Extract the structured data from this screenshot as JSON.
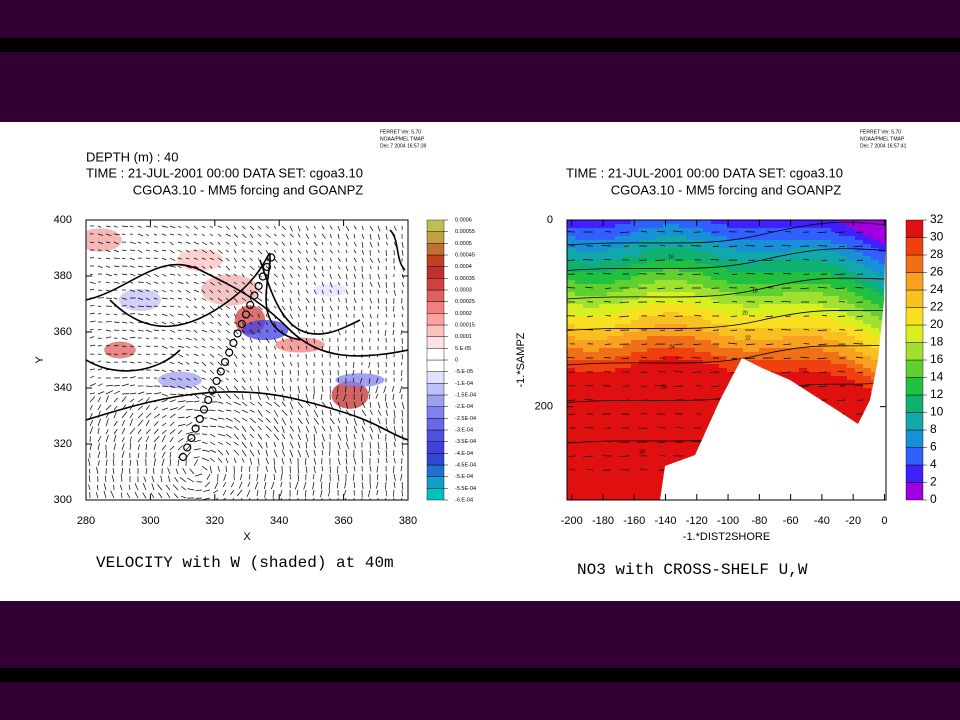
{
  "chart_data": [
    {
      "type": "vector",
      "header": [
        "FERRET Ver. 5.70",
        "NOAA/PMEL TMAP",
        "Dec  7 2004 16:57:39"
      ],
      "subtitle": [
        "DEPTH (m) : 40",
        "TIME : 21-JUL-2001 00:00  DATA SET: cgoa3.10"
      ],
      "title": "CGOA3.10 - MM5 forcing and GOANPZ",
      "x_label": "X",
      "y_label": "Y",
      "xlim": [
        280,
        380
      ],
      "ylim": [
        300,
        400
      ],
      "xticks": [
        280,
        300,
        320,
        340,
        360,
        380
      ],
      "yticks": [
        300,
        320,
        340,
        360,
        380,
        400
      ],
      "caption": "VELOCITY with W (shaded) at 40m",
      "colorbar": {
        "lim": [
          -0.0006,
          0.0006
        ],
        "ticks": [
          0.0006,
          0.00055,
          0.0005,
          0.00045,
          0.0004,
          0.00035,
          0.0003,
          0.00025,
          0.0002,
          0.00015,
          0.0001,
          {
            "value": 5e-05,
            "label": "5.E-05"
          },
          0,
          {
            "value": -5e-05,
            "label": "-5.E-05"
          },
          {
            "value": -0.0001,
            "label": "-1.E-04"
          },
          {
            "value": -0.00015,
            "label": "-1.5E-04"
          },
          {
            "value": -0.0002,
            "label": "-2.E-04"
          },
          {
            "value": -0.00025,
            "label": "-2.5E-04"
          },
          {
            "value": -0.0003,
            "label": "-3.E-04"
          },
          {
            "value": -0.00035,
            "label": "-3.5E-04"
          },
          {
            "value": -0.0004,
            "label": "-4.E-04"
          },
          {
            "value": -0.00045,
            "label": "-4.5E-04"
          },
          {
            "value": -0.0005,
            "label": "-5.E-04"
          },
          {
            "value": -0.00055,
            "label": "-5.5E-04"
          },
          {
            "value": -0.0006,
            "label": "-6.E-04"
          }
        ],
        "colors": [
          "#00c0c0",
          "#10a0c8",
          "#2070d0",
          "#3048d0",
          "#4040e0",
          "#5050e0",
          "#6868e8",
          "#8080f0",
          "#a0a0f0",
          "#c0c0f8",
          "#e0e0ff",
          "#ffffff",
          "#ffffff",
          "#ffe0e0",
          "#ffc0c0",
          "#ffa0a0",
          "#f08080",
          "#e06060",
          "#d04040",
          "#c03030",
          "#c04020",
          "#c07030",
          "#c0a040",
          "#c0c050"
        ]
      }
    },
    {
      "type": "contour",
      "header": [
        "FERRET Ver. 5.70",
        "NOAA/PMEL TMAP",
        "Dec  7 2004 16:57:41"
      ],
      "subtitle": [
        "TIME : 21-JUL-2001 00:00  DATA SET: cgoa3.10"
      ],
      "title": "CGOA3.10 - MM5 forcing and GOANPZ",
      "x_label": "-1.*DIST2SHORE",
      "y_label": "-1.*SAMPZ",
      "xlim": [
        -203,
        1
      ],
      "ylim": [
        0,
        300
      ],
      "y_inverted": true,
      "xticks": [
        -200,
        -180,
        -160,
        -140,
        -120,
        -100,
        -80,
        -60,
        -40,
        -20,
        0
      ],
      "yticks": [
        0,
        200
      ],
      "contour_labels": [
        16,
        18,
        20,
        22,
        24,
        26,
        28
      ],
      "caption": "NO3 with CROSS-SHELF U,W",
      "colorbar": {
        "lim": [
          0,
          32
        ],
        "ticks": [
          32,
          30,
          28,
          26,
          24,
          22,
          20,
          18,
          16,
          14,
          12,
          10,
          8,
          6,
          4,
          2,
          0
        ],
        "colors": [
          "#a000e0",
          "#4020ff",
          "#3060ff",
          "#1890d8",
          "#10a8a8",
          "#10b070",
          "#20c040",
          "#60d030",
          "#a0e030",
          "#d8f020",
          "#f8e020",
          "#f8c020",
          "#f8a020",
          "#f07018",
          "#f04010",
          "#e01010"
        ]
      }
    }
  ]
}
